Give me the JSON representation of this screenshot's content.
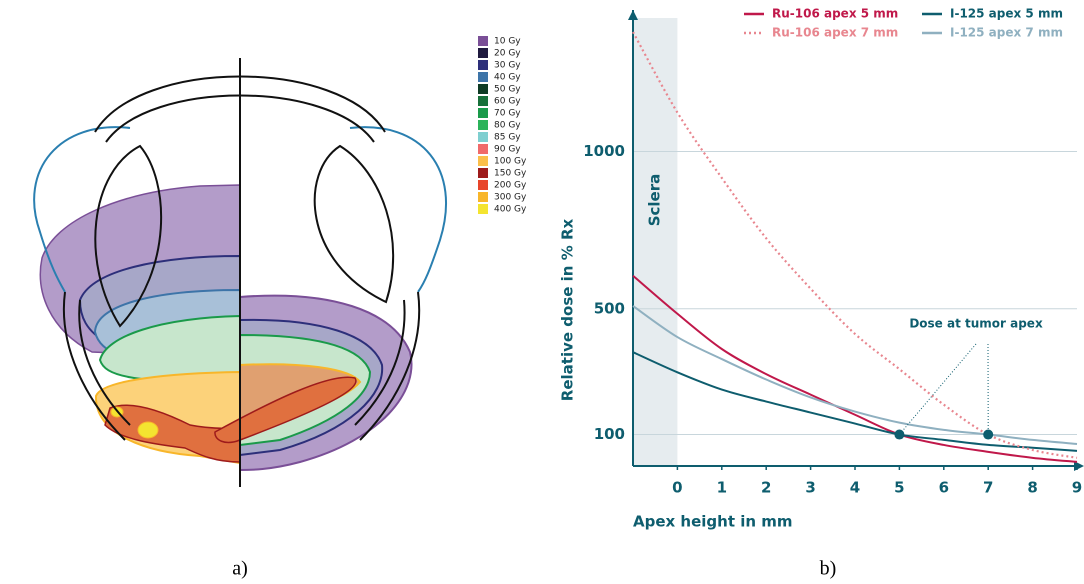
{
  "diagram": {
    "caption": "a)",
    "legend": [
      {
        "label": "10 Gy",
        "color": "#7a4f97"
      },
      {
        "label": "20 Gy",
        "color": "#1f1a3f"
      },
      {
        "label": "30 Gy",
        "color": "#2d2f7a"
      },
      {
        "label": "40 Gy",
        "color": "#3d74a8"
      },
      {
        "label": "50 Gy",
        "color": "#0e3b24"
      },
      {
        "label": "60 Gy",
        "color": "#17703a"
      },
      {
        "label": "70 Gy",
        "color": "#1a9a4a"
      },
      {
        "label": "80 Gy",
        "color": "#2bb35a"
      },
      {
        "label": "85 Gy",
        "color": "#7fcfd0"
      },
      {
        "label": "90 Gy",
        "color": "#f06a6a"
      },
      {
        "label": "100 Gy",
        "color": "#fbbf4a"
      },
      {
        "label": "150 Gy",
        "color": "#9e1b1b"
      },
      {
        "label": "200 Gy",
        "color": "#e8452a"
      },
      {
        "label": "300 Gy",
        "color": "#f8b62a"
      },
      {
        "label": "400 Gy",
        "color": "#f4e430"
      }
    ]
  },
  "chart_data": {
    "type": "line",
    "caption": "b)",
    "x_label": "Apex height in mm",
    "y_label": "Relative dose in % Rx",
    "region_label": "Sclera",
    "annotation": "Dose at tumor apex",
    "x": [
      -1,
      0,
      1,
      2,
      3,
      4,
      5,
      6,
      7,
      8,
      9
    ],
    "xlim": [
      -1,
      9
    ],
    "xticks": [
      0,
      1,
      2,
      3,
      4,
      5,
      6,
      7,
      8,
      9
    ],
    "ylim": [
      0,
      1450
    ],
    "yticks": [
      100,
      500,
      1000
    ],
    "grid": true,
    "series": [
      {
        "name": "Ru-106 apex 5 mm",
        "color": "#c0184a",
        "line_style": "solid",
        "values": [
          605,
          484,
          372,
          292,
          227,
          163,
          100,
          67,
          45,
          26,
          13
        ]
      },
      {
        "name": "I-125 apex 5 mm",
        "color": "#0e5d6e",
        "line_style": "solid",
        "values": [
          362,
          298,
          243,
          205,
          170,
          135,
          100,
          83,
          67,
          58,
          48
        ]
      },
      {
        "name": "Ru-106 apex 7 mm",
        "color": "#e8868f",
        "line_style": "dotted",
        "values": [
          1380,
          1124,
          916,
          724,
          564,
          420,
          308,
          195,
          100,
          51,
          26
        ]
      },
      {
        "name": "I-125 apex 7 mm",
        "color": "#8fb0c0",
        "line_style": "solid",
        "values": [
          509,
          410,
          340,
          275,
          218,
          173,
          138,
          115,
          100,
          83,
          70
        ]
      }
    ],
    "markers": {
      "color": "#0e5d6e",
      "x": [
        5,
        7
      ],
      "values": [
        100,
        100
      ]
    }
  }
}
